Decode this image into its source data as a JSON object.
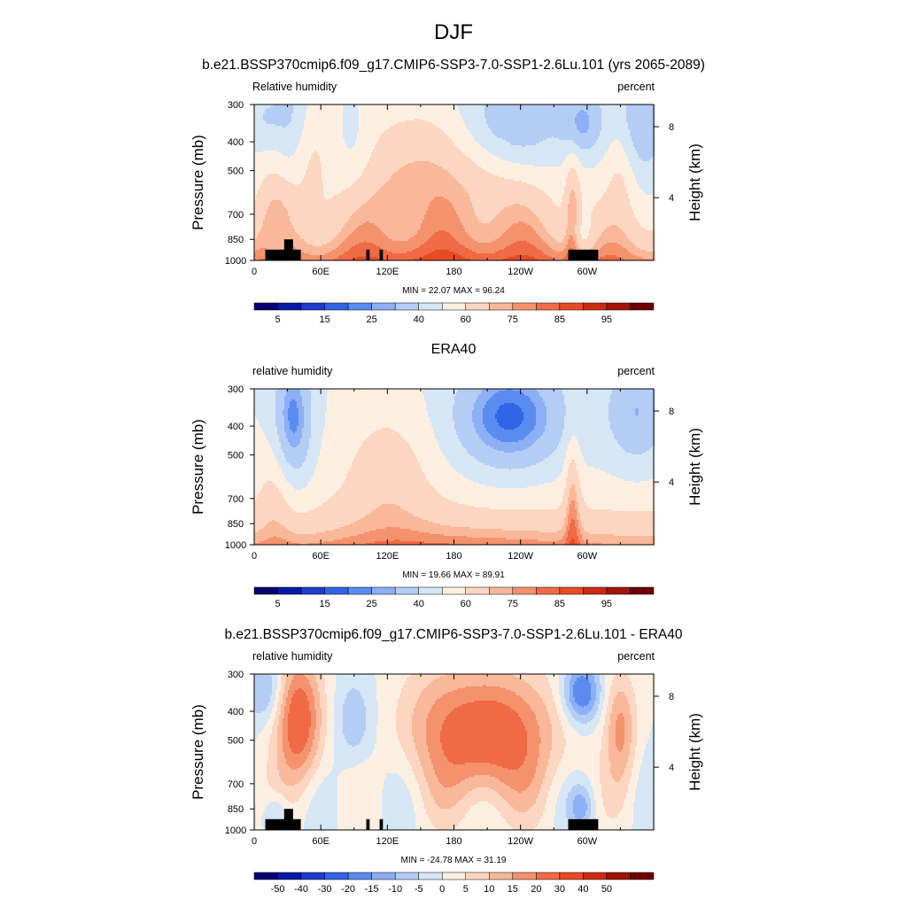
{
  "figure": {
    "title": "DJF"
  },
  "colors": {
    "rh_scale": [
      "#05006e",
      "#0a19a5",
      "#1e3ccd",
      "#3264e6",
      "#5a8cf0",
      "#8caff5",
      "#b4cdf5",
      "#d7e6f5",
      "#fcefe2",
      "#fcd6c0",
      "#f9b89a",
      "#f5926e",
      "#ef6a45",
      "#e84a23",
      "#cd2a12",
      "#a0140a",
      "#6e0000"
    ],
    "diff_scale": [
      "#05006e",
      "#0a19a5",
      "#1e3ccd",
      "#3264e6",
      "#5a8cf0",
      "#8caff5",
      "#b4cdf5",
      "#d7e6f5",
      "#fcefe2",
      "#fcd6c0",
      "#f9b89a",
      "#f5926e",
      "#ef6a45",
      "#e84a23",
      "#cd2a12",
      "#a0140a",
      "#6e0000"
    ],
    "mask": "#000000"
  },
  "chart_data": [
    {
      "type": "heatmap",
      "title": "b.e21.BSSP370cmip6.f09_g17.CMIP6-SSP3-7.0-SSP1-2.6Lu.101 (yrs 2065-2089)",
      "left_label": "Relative humidity",
      "right_label": "percent",
      "ylabel": "Pressure (mb)",
      "y2label": "Height (km)",
      "stats": "MIN =  22.07  MAX =  96.24",
      "min": 22.07,
      "max": 96.24,
      "x_ticks": [
        "0",
        "60E",
        "120E",
        "180",
        "120W",
        "60W"
      ],
      "x_tick_values": [
        0,
        60,
        120,
        180,
        240,
        300
      ],
      "x_range": [
        0,
        360
      ],
      "y_ticks": [
        "300",
        "400",
        "500",
        "700",
        "850",
        "1000"
      ],
      "y_tick_values": [
        300,
        400,
        500,
        700,
        850,
        1000
      ],
      "y_range": [
        300,
        1000
      ],
      "y2_ticks": [
        "8",
        "4"
      ],
      "y2_tick_pressures": [
        356,
        616
      ],
      "colorbar_labels": [
        "5",
        "15",
        "25",
        "40",
        "60",
        "75",
        "85",
        "95"
      ],
      "colorbar_label_slots": [
        1,
        3,
        5,
        7,
        9,
        11,
        13,
        15
      ],
      "field": "ctl",
      "mask": true
    },
    {
      "type": "heatmap",
      "title": "ERA40",
      "left_label": "relative humidity",
      "right_label": "percent",
      "ylabel": "Pressure (mb)",
      "y2label": "Height (km)",
      "stats": "MIN =  19.66  MAX =  89.91",
      "min": 19.66,
      "max": 89.91,
      "x_ticks": [
        "0",
        "60E",
        "120E",
        "180",
        "120W",
        "60W"
      ],
      "x_tick_values": [
        0,
        60,
        120,
        180,
        240,
        300
      ],
      "x_range": [
        0,
        360
      ],
      "y_ticks": [
        "300",
        "400",
        "500",
        "700",
        "850",
        "1000"
      ],
      "y_tick_values": [
        300,
        400,
        500,
        700,
        850,
        1000
      ],
      "y_range": [
        300,
        1000
      ],
      "y2_ticks": [
        "8",
        "4"
      ],
      "y2_tick_pressures": [
        356,
        616
      ],
      "colorbar_labels": [
        "5",
        "15",
        "25",
        "40",
        "60",
        "75",
        "85",
        "95"
      ],
      "colorbar_label_slots": [
        1,
        3,
        5,
        7,
        9,
        11,
        13,
        15
      ],
      "field": "obs",
      "mask": false
    },
    {
      "type": "heatmap",
      "title": "b.e21.BSSP370cmip6.f09_g17.CMIP6-SSP3-7.0-SSP1-2.6Lu.101 - ERA40",
      "left_label": "relative humidity",
      "right_label": "percent",
      "ylabel": "Pressure (mb)",
      "y2label": "Height (km)",
      "stats": "MIN = -24.78  MAX =  31.19",
      "min": -24.78,
      "max": 31.19,
      "x_ticks": [
        "0",
        "60E",
        "120E",
        "180",
        "120W",
        "60W"
      ],
      "x_tick_values": [
        0,
        60,
        120,
        180,
        240,
        300
      ],
      "x_range": [
        0,
        360
      ],
      "y_ticks": [
        "300",
        "400",
        "500",
        "700",
        "850",
        "1000"
      ],
      "y_tick_values": [
        300,
        400,
        500,
        700,
        850,
        1000
      ],
      "y_range": [
        300,
        1000
      ],
      "y2_ticks": [
        "8",
        "4"
      ],
      "y2_tick_pressures": [
        356,
        616
      ],
      "colorbar_labels": [
        "-50",
        "-40",
        "-30",
        "-20",
        "-15",
        "-10",
        "-5",
        "0",
        "5",
        "10",
        "15",
        "20",
        "30",
        "40",
        "50"
      ],
      "colorbar_label_slots": [
        1,
        2,
        3,
        4,
        5,
        6,
        7,
        8,
        9,
        10,
        11,
        12,
        13,
        14,
        15
      ],
      "field": "diff",
      "mask": true
    }
  ]
}
